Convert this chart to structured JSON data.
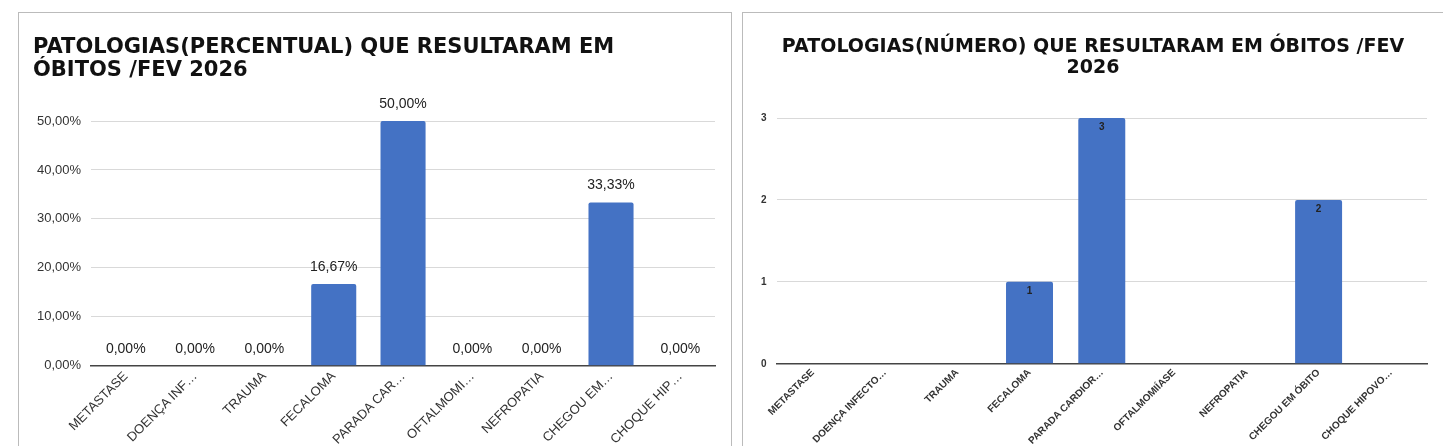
{
  "chart_data": [
    {
      "type": "bar",
      "title": "PATOLOGIAS(PERCENTUAL) QUE RESULTARAM EM ÓBITOS /FEV 2026",
      "categories": [
        "METASTASE",
        "DOENÇA INF…",
        "TRAUMA",
        "FECALOMA",
        "PARADA CAR…",
        "OFTALMOMI…",
        "NEFROPATIA",
        "CHEGOU EM…",
        "CHOQUE HIP…"
      ],
      "values": [
        0,
        0,
        0,
        16.67,
        50,
        0,
        0,
        33.33,
        0
      ],
      "value_labels": [
        "0,00%",
        "0,00%",
        "0,00%",
        "16,67%",
        "50,00%",
        "0,00%",
        "0,00%",
        "33,33%",
        "0,00%"
      ],
      "color": "#4472c4",
      "ylim": [
        0,
        50
      ],
      "yticks": [
        {
          "value": 0,
          "label": "0,00%"
        },
        {
          "value": 10,
          "label": "10,00%"
        },
        {
          "value": 20,
          "label": "20,00%"
        },
        {
          "value": 30,
          "label": "30,00%"
        },
        {
          "value": 40,
          "label": "40,00%"
        },
        {
          "value": 50,
          "label": "50,00%"
        }
      ],
      "grid": "y",
      "legend": false
    },
    {
      "type": "bar",
      "title": "PATOLOGIAS(NÚMERO) QUE RESULTARAM EM ÓBITOS /FEV 2026",
      "categories": [
        "METASTASE",
        "DOENÇA INFECTO…",
        "TRAUMA",
        "FECALOMA",
        "PARADA CARDIOR…",
        "OFTALMOMIÍASE",
        "NEFROPATIA",
        "CHEGOU EM ÓBITO",
        "CHOQUE HIPOVO…"
      ],
      "values": [
        0,
        0,
        0,
        1,
        3,
        0,
        0,
        2,
        0
      ],
      "value_labels": [
        null,
        null,
        null,
        "1",
        "3",
        null,
        null,
        "2",
        null
      ],
      "color": "#4472c4",
      "ylim": [
        0,
        3
      ],
      "yticks": [
        0,
        1,
        2,
        3
      ],
      "grid": "y",
      "legend": false
    }
  ]
}
